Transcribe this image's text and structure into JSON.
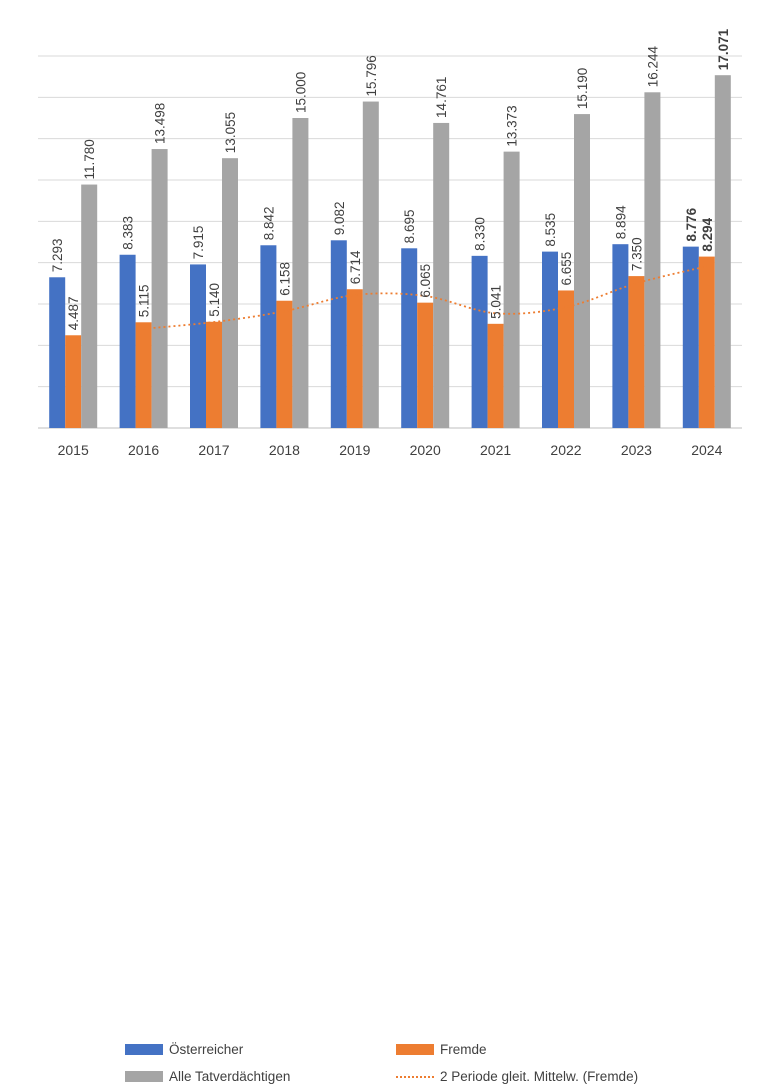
{
  "chart_data": {
    "type": "bar",
    "title": "",
    "xlabel": "",
    "ylabel": "",
    "categories": [
      "2015",
      "2016",
      "2017",
      "2018",
      "2019",
      "2020",
      "2021",
      "2022",
      "2023",
      "2024"
    ],
    "ylim": [
      0,
      18000
    ],
    "grid": true,
    "legend_position": "bottom",
    "series": [
      {
        "name": "Österreicher",
        "color": "#4472C4",
        "values": [
          7293,
          8383,
          7915,
          8842,
          9082,
          8695,
          8330,
          8535,
          8894,
          8776
        ],
        "labels": [
          "7.293",
          "8.383",
          "7.915",
          "8.842",
          "9.082",
          "8.695",
          "8.330",
          "8.535",
          "8.894",
          "8.776"
        ]
      },
      {
        "name": "Fremde",
        "color": "#ED7D31",
        "values": [
          4487,
          5115,
          5140,
          6158,
          6714,
          6065,
          5041,
          6655,
          7350,
          8294
        ],
        "labels": [
          "4.487",
          "5.115",
          "5.140",
          "6.158",
          "6.714",
          "6.065",
          "5.041",
          "6.655",
          "7.350",
          "8.294"
        ]
      },
      {
        "name": "Alle Tatverdächtigen",
        "color": "#A5A5A5",
        "values": [
          11780,
          13498,
          13055,
          15000,
          15796,
          14761,
          13373,
          15190,
          16244,
          17071
        ],
        "labels": [
          "11.780",
          "13.498",
          "13.055",
          "15.000",
          "15.796",
          "14.761",
          "13.373",
          "15.190",
          "16.244",
          "17.071"
        ]
      }
    ],
    "trendline": {
      "name": "2 Periode gleit. Mittelw. (Fremde)",
      "color": "#ED7D31",
      "style": "dotted",
      "values": [
        null,
        4801,
        5127.5,
        5649,
        6436,
        6389.5,
        5553,
        5848,
        7002.5,
        7822
      ]
    }
  }
}
